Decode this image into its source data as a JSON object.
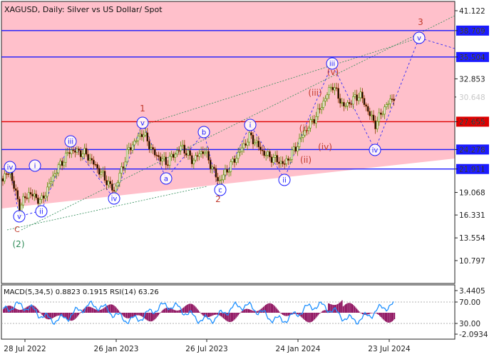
{
  "chart_data": {
    "type": "candlestick",
    "title": "XAGUSD, Daily:  Silver vs US Dollar/ Spot",
    "price_axis": {
      "ticks": [
        "41.122",
        "38.709",
        "35.504",
        "32.853",
        "30.648",
        "27.655",
        "24.278",
        "21.911",
        "19.068",
        "16.331",
        "13.554",
        "10.797"
      ]
    },
    "date_axis": {
      "ticks": [
        "28 Jul 2022",
        "26 Jan 2023",
        "26 Jul 2023",
        "24 Jan 2024",
        "23 Jul 2024"
      ]
    },
    "horizontal_levels": [
      {
        "price": "38.709",
        "color": "#1a1aff",
        "badge": "#1a1aff"
      },
      {
        "price": "35.504",
        "color": "#1a1aff",
        "badge": "#1a1aff"
      },
      {
        "price": "27.655",
        "color": "#dd0000",
        "badge": "#dd0000"
      },
      {
        "price": "24.278",
        "color": "#1a1aff",
        "badge": "#1a1aff"
      },
      {
        "price": "21.911",
        "color": "#1a1aff",
        "badge": "#1a1aff"
      }
    ],
    "current_price": "30.648",
    "wave_labels": {
      "circled_blue": [
        "iv",
        "v",
        "ii",
        "i",
        "iii",
        "iv",
        "v",
        "a",
        "b",
        "c",
        "i",
        "ii",
        "iii",
        "iv",
        "v"
      ],
      "red_text": [
        "(2)",
        "C",
        "1",
        "2",
        "3",
        "(i)",
        "(ii)",
        "(iii)",
        "(iv)",
        "(v)"
      ]
    },
    "indicator": {
      "title": "MACD(5,34,5) 0.8823 0.1915 RSI(14) 63.26",
      "ticks": [
        "3.4405",
        "70.00",
        "30.00",
        "-2.0934"
      ]
    }
  },
  "colors": {
    "background": "#ffffff",
    "zone": "#ffc0cb",
    "candle_up": "#5a8f00",
    "candle_down": "#8b3a00",
    "macd_hist": "#8b0a5a",
    "rsi_line": "#1e90ff",
    "blue_level": "#1a1aff",
    "red_level": "#dd0000",
    "wave_label": "#1a1aff",
    "red_label": "#c0392b",
    "green_label": "#2e8b57"
  }
}
